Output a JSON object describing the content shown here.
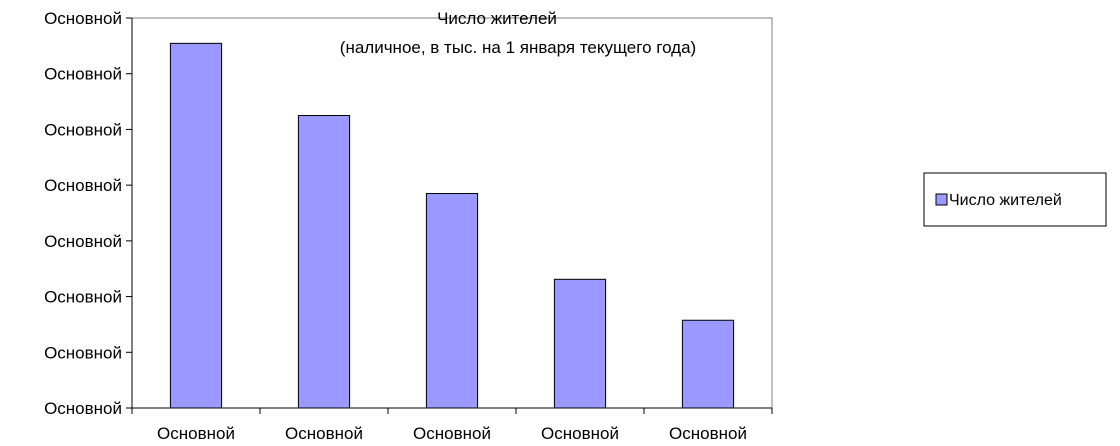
{
  "chart_data": {
    "type": "bar",
    "title": "Число жителей",
    "subtitle": "(наличное, в тыс. на 1 января текущего года)",
    "categories": [
      "Основной",
      "Основной",
      "Основной",
      "Основной",
      "Основной"
    ],
    "y_tick_labels": [
      "Основной",
      "Основной",
      "Основной",
      "Основной",
      "Основной",
      "Основной",
      "Основной",
      "Основной"
    ],
    "series": [
      {
        "name": "Число жителей",
        "values": [
          0.935,
          0.75,
          0.55,
          0.33,
          0.225
        ],
        "color": "#9999ff"
      }
    ],
    "ylim": [
      0,
      1
    ],
    "grid": false,
    "legend_position": "right",
    "xlabel": "",
    "ylabel": ""
  }
}
